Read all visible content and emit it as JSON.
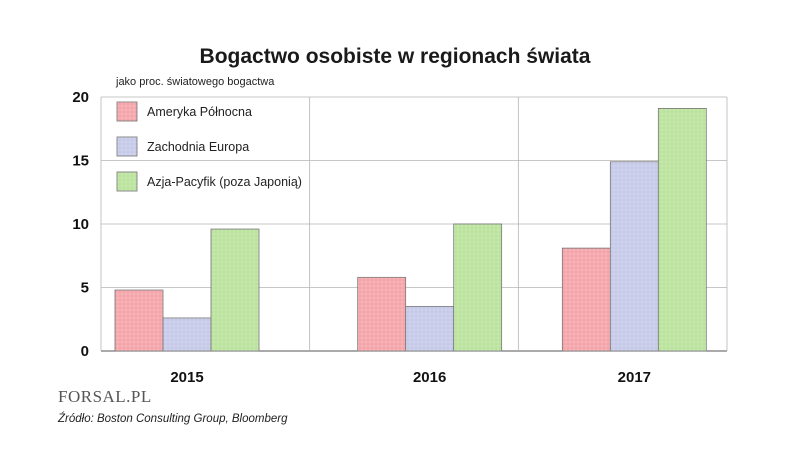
{
  "chart_data": {
    "type": "bar",
    "title": "Bogactwo osobiste w regionach świata",
    "ylabel": "jako proc. światowego bogactwa",
    "xlabel": "",
    "categories": [
      "2015",
      "2016",
      "2017"
    ],
    "series": [
      {
        "name": "Ameryka Północna",
        "values": [
          4.8,
          5.8,
          8.1
        ],
        "color": "#f4a3a8"
      },
      {
        "name": "Zachodnia Europa",
        "values": [
          2.6,
          3.5,
          14.9
        ],
        "color": "#c5c9e8"
      },
      {
        "name": "Azja-Pacyfik (poza Japonią)",
        "values": [
          9.6,
          10.0,
          19.1
        ],
        "color": "#b9e29b"
      }
    ],
    "ylim": [
      0,
      20
    ],
    "yticks": [
      "0",
      "5",
      "10",
      "15",
      "20"
    ],
    "grid": true,
    "legend_position": "top-left"
  },
  "footer": {
    "logo": "FORSAL.PL",
    "source": "Źródło: Boston Consulting Group, Bloomberg"
  }
}
